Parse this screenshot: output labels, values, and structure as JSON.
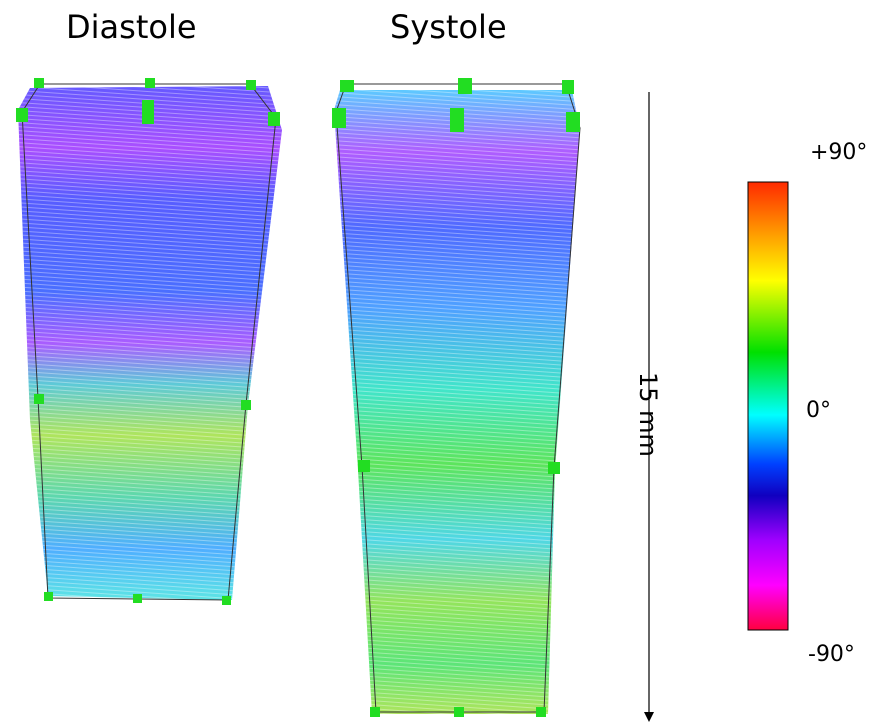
{
  "figure": {
    "panels": [
      {
        "title": "Diastole"
      },
      {
        "title": "Systole"
      }
    ],
    "scale_bar": {
      "label": "15 mm"
    },
    "colorbar": {
      "top_label": "+90°",
      "middle_label": "0°",
      "bottom_label": "-90°",
      "stops": [
        "#ff2a00",
        "#ffa000",
        "#ffff00",
        "#00e000",
        "#00ffff",
        "#0040ff",
        "#1000c0",
        "#a000ff",
        "#ff00ff",
        "#ff0040"
      ]
    },
    "marker_color": "#22dd22"
  }
}
